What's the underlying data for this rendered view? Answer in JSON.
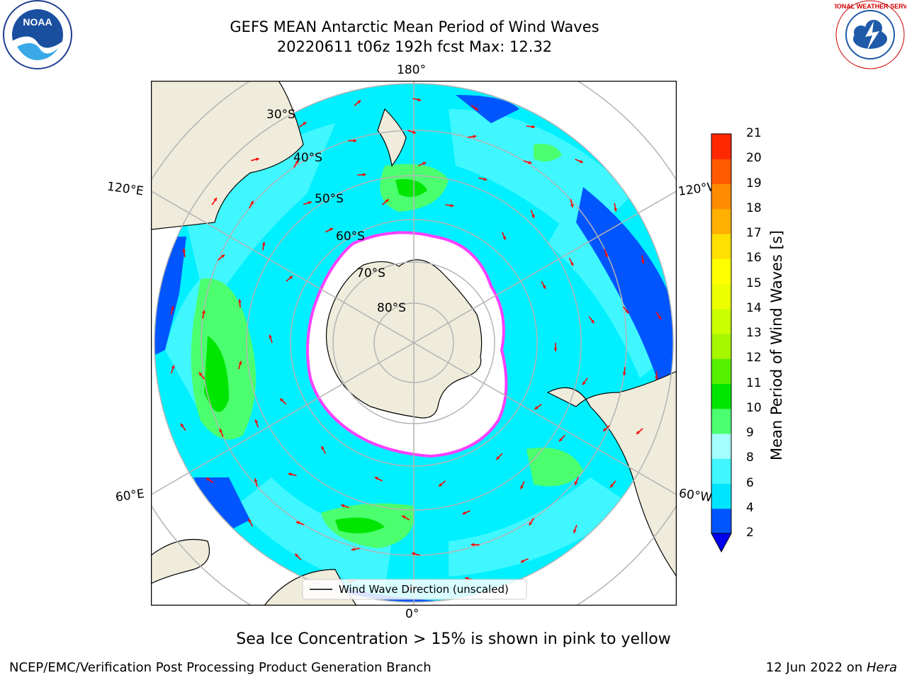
{
  "header": {
    "title_line1": "GEFS MEAN Antarctic Mean Period of Wind Waves",
    "title_line2": "20220611 t06z 192h fcst   Max: 12.32"
  },
  "logos": {
    "noaa_text": "NOAA",
    "nws_text": "NATIONAL WEATHER SERVICE"
  },
  "map": {
    "lon_labels": {
      "top": "180°",
      "bottom": "0°",
      "left_upper": "120°E",
      "left_lower": "60°E",
      "right_upper": "120°W",
      "right_lower": "60°W"
    },
    "lat_labels": [
      "30°S",
      "40°S",
      "50°S",
      "60°S",
      "70°S",
      "80°S"
    ],
    "legend_label": "Wind Wave Direction (unscaled)",
    "arrow_color": "#ff0000",
    "land_color": "#efecdc",
    "ice_edge_color": "#ff40ff"
  },
  "colorbar": {
    "label": "Mean Period of Wind Waves [s]",
    "ticks": [
      "2",
      "4",
      "6",
      "8",
      "9",
      "10",
      "11",
      "12",
      "13",
      "14",
      "15",
      "16",
      "17",
      "18",
      "19",
      "20",
      "21"
    ],
    "colors": [
      "#0055ff",
      "#00e5ff",
      "#40f7ff",
      "#a5ffff",
      "#4cff6e",
      "#00e600",
      "#55f000",
      "#a6f600",
      "#ccff00",
      "#eeff00",
      "#ffff00",
      "#ffe000",
      "#ffb000",
      "#ff8c00",
      "#ff5a00",
      "#ff2800"
    ],
    "under_color": "#0000ee"
  },
  "notes": {
    "sea_ice": "Sea Ice Concentration > 15% is shown in pink to yellow"
  },
  "footer": {
    "left": "NCEP/EMC/Verification Post Processing Product Generation Branch",
    "right_date": "12 Jun 2022 on ",
    "right_machine": "Hera"
  }
}
